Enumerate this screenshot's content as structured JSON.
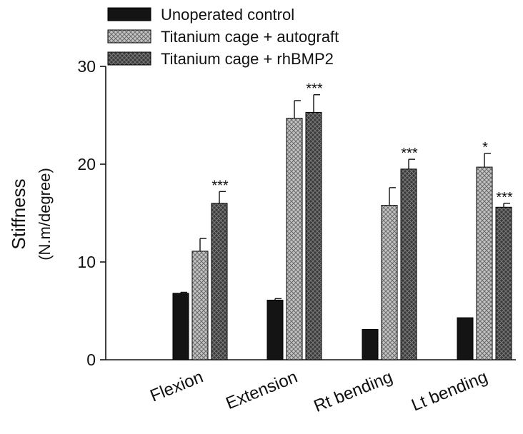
{
  "colors": {
    "unoperated": "#141414",
    "autograft": "#b3b3b3",
    "rhbmp2": "#4a4a4a",
    "axis": "#111111"
  },
  "chart_data": {
    "type": "bar",
    "ylabel": "Stiffness",
    "ylabel_unit": "(N.m/degree)",
    "ylim": [
      0,
      30
    ],
    "yticks": [
      0,
      10,
      20,
      30
    ],
    "grid": false,
    "legend_position": "top",
    "categories": [
      "Flexion",
      "Extension",
      "Rt bending",
      "Lt bending"
    ],
    "series": [
      {
        "name": "Unoperated control",
        "pattern": "solid",
        "values": [
          6.8,
          6.1,
          3.1,
          4.3
        ],
        "errors": [
          0.1,
          0.15,
          0.05,
          0.05
        ],
        "significance": [
          "",
          "",
          "",
          ""
        ]
      },
      {
        "name": "Titanium cage + autograft",
        "pattern": "crosshatch-light",
        "values": [
          11.1,
          24.7,
          15.8,
          19.7
        ],
        "errors": [
          1.3,
          1.8,
          1.8,
          1.4
        ],
        "significance": [
          "",
          "",
          "",
          "*"
        ]
      },
      {
        "name": "Titanium cage + rhBMP2",
        "pattern": "crosshatch-dark",
        "values": [
          16.0,
          25.3,
          19.5,
          15.6
        ],
        "errors": [
          1.2,
          1.8,
          1.0,
          0.4
        ],
        "significance": [
          "***",
          "***",
          "***",
          "***"
        ]
      }
    ]
  }
}
